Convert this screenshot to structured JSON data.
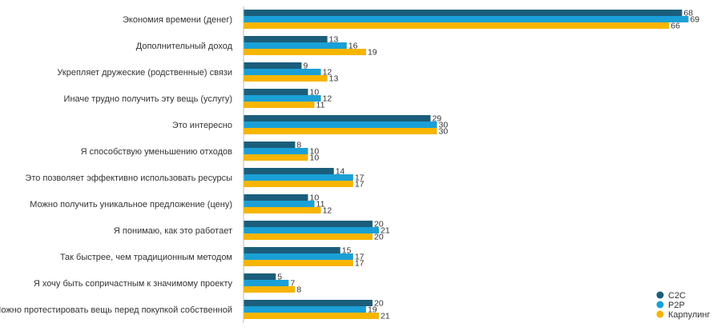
{
  "chart_data": {
    "type": "bar",
    "orientation": "horizontal",
    "title": "",
    "xlabel": "",
    "ylabel": "",
    "xlim": [
      0,
      70
    ],
    "grid": false,
    "legend_position": "bottom-right",
    "categories": [
      "Экономия времени (денег)",
      "Дополнительный доход",
      "Укрепляет дружеские (родственные) связи",
      "Иначе трудно получить эту вещь (услугу)",
      "Это интересно",
      "Я способствую уменьшению отходов",
      "Это позволяет эффективно использовать ресурсы",
      "Можно получить уникальное предложение (цену)",
      "Я понимаю, как это работает",
      "Так быстрее, чем традиционным методом",
      "Я хочу быть сопричастным к значимому проекту",
      "Можно протестировать вещь перед покупкой собственной"
    ],
    "series": [
      {
        "name": "C2C",
        "color": "#1b5e7b",
        "values": [
          68,
          13,
          9,
          10,
          29,
          8,
          14,
          10,
          20,
          15,
          5,
          20
        ]
      },
      {
        "name": "P2P",
        "color": "#1aa0d6",
        "values": [
          69,
          16,
          12,
          12,
          30,
          10,
          17,
          11,
          21,
          17,
          7,
          19
        ]
      },
      {
        "name": "Карпулинг",
        "color": "#f7b500",
        "values": [
          66,
          19,
          13,
          11,
          30,
          10,
          17,
          12,
          20,
          17,
          8,
          21
        ]
      }
    ]
  }
}
